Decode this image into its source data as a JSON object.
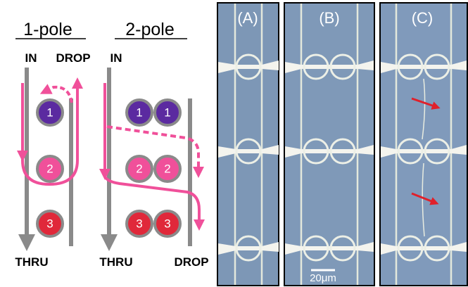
{
  "schematic": {
    "one_pole": {
      "title": "1-pole",
      "in": "IN",
      "drop": "DROP",
      "thru": "THRU",
      "rings": [
        "1",
        "2",
        "3"
      ]
    },
    "two_pole": {
      "title": "2-pole",
      "in": "IN",
      "drop": "DROP",
      "thru": "THRU",
      "rings": [
        "1",
        "1",
        "2",
        "2",
        "3",
        "3"
      ]
    }
  },
  "micrographs": {
    "panels": [
      "(A)",
      "(B)",
      "(C)"
    ],
    "scale_bar": "20μm"
  }
}
